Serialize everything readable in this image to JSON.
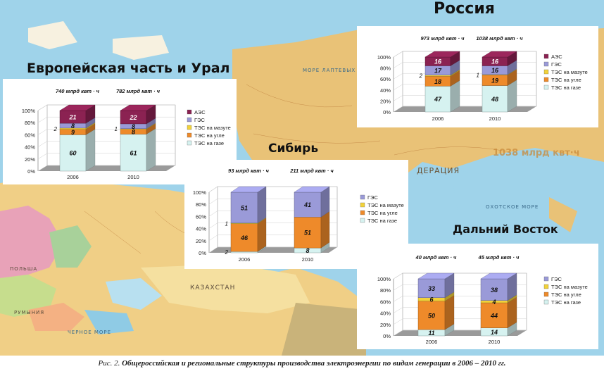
{
  "titles": {
    "russia": "Россия",
    "europe": "Европейская часть и Урал",
    "siberia": "Сибирь",
    "fareast": "Дальний Восток"
  },
  "map_labels": {
    "kazakhstan": "КАЗАХСТАН",
    "federation": "ДЕРАЦИЯ",
    "okhotsk": "ОХОТСКОЕ МОРЕ",
    "black_sea": "ЧЕРНОЕ МОРЕ",
    "laptev": "МОРЕ ЛАПТЕВЫХ",
    "poland": "ПОЛЬША",
    "romania": "РУМЫНИЯ",
    "overlay": "1038 млрд квт·ч"
  },
  "caption": {
    "prefix": "Рис. 2.",
    "text": "Общероссийская и региональные структуры производства электроэнергии по видам генерации в 2006 – 2010 гг."
  },
  "colors": {
    "АЭС": "#8b2252",
    "ГЭС": "#9a9ad8",
    "ТЭС на мазуте": "#f2d23a",
    "ТЭС на угле": "#ee8a2a",
    "ТЭС на газе": "#d6f2f0"
  },
  "chart_data": [
    {
      "id": "russia",
      "type": "bar",
      "stacked": true,
      "categories": [
        "2006",
        "2010"
      ],
      "totals": [
        "973 млрд квт · ч",
        "1038 млрд квт · ч"
      ],
      "yticks": [
        "0%",
        "20%",
        "40%",
        "60%",
        "80%",
        "100%"
      ],
      "ylim": [
        0,
        100
      ],
      "legend": [
        "АЭС",
        "ГЭС",
        "ТЭС на мазуте",
        "ТЭС на угле",
        "ТЭС на газе"
      ],
      "series": [
        {
          "name": "ТЭС на газе",
          "values": [
            47,
            48
          ]
        },
        {
          "name": "ТЭС на угле",
          "values": [
            18,
            19
          ]
        },
        {
          "name": "ТЭС на мазуте",
          "values": [
            2,
            1
          ]
        },
        {
          "name": "ГЭС",
          "values": [
            17,
            16
          ]
        },
        {
          "name": "АЭС",
          "values": [
            16,
            16
          ]
        }
      ]
    },
    {
      "id": "europe",
      "type": "bar",
      "stacked": true,
      "categories": [
        "2006",
        "2010"
      ],
      "totals": [
        "740 млрд квт · ч",
        "782 млрд квт · ч"
      ],
      "yticks": [
        "0%",
        "20%",
        "40%",
        "60%",
        "80%",
        "100%"
      ],
      "ylim": [
        0,
        100
      ],
      "legend": [
        "АЭС",
        "ГЭС",
        "ТЭС на мазуте",
        "ТЭС на угле",
        "ТЭС на газе"
      ],
      "series": [
        {
          "name": "ТЭС на газе",
          "values": [
            60,
            61
          ]
        },
        {
          "name": "ТЭС на угле",
          "values": [
            9,
            8
          ]
        },
        {
          "name": "ТЭС на мазуте",
          "values": [
            2,
            1
          ]
        },
        {
          "name": "ГЭС",
          "values": [
            8,
            8
          ]
        },
        {
          "name": "АЭС",
          "values": [
            21,
            22
          ]
        }
      ]
    },
    {
      "id": "siberia",
      "type": "bar",
      "stacked": true,
      "categories": [
        "2006",
        "2010"
      ],
      "totals": [
        "93 млрд квт · ч",
        "211 млрд квт · ч"
      ],
      "yticks": [
        "0%",
        "20%",
        "40%",
        "60%",
        "80%",
        "100%"
      ],
      "ylim": [
        0,
        100
      ],
      "legend": [
        "ГЭС",
        "ТЭС на мазуте",
        "ТЭС на угле",
        "ТЭС на газе"
      ],
      "series": [
        {
          "name": "ТЭС на газе",
          "values": [
            2,
            8
          ]
        },
        {
          "name": "ТЭС на угле",
          "values": [
            46,
            51
          ]
        },
        {
          "name": "ТЭС на мазуте",
          "values": [
            1,
            0
          ]
        },
        {
          "name": "ГЭС",
          "values": [
            51,
            41
          ]
        }
      ]
    },
    {
      "id": "fareast",
      "type": "bar",
      "stacked": true,
      "categories": [
        "2006",
        "2010"
      ],
      "totals": [
        "40 млрд квт · ч",
        "45 млрд квт · ч"
      ],
      "yticks": [
        "0%",
        "20%",
        "40%",
        "60%",
        "80%",
        "100%"
      ],
      "ylim": [
        0,
        100
      ],
      "legend": [
        "ГЭС",
        "ТЭС на мазуте",
        "ТЭС на угле",
        "ТЭС на газе"
      ],
      "series": [
        {
          "name": "ТЭС на газе",
          "values": [
            11,
            14
          ]
        },
        {
          "name": "ТЭС на угле",
          "values": [
            50,
            44
          ]
        },
        {
          "name": "ТЭС на мазуте",
          "values": [
            6,
            4
          ]
        },
        {
          "name": "ГЭС",
          "values": [
            33,
            38
          ]
        }
      ]
    }
  ]
}
